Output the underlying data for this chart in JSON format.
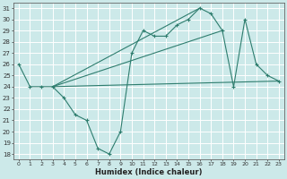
{
  "xlabel": "Humidex (Indice chaleur)",
  "bg_color": "#cce9e9",
  "grid_color": "#ffffff",
  "line_color": "#2e7d6e",
  "xlim": [
    -0.5,
    23.5
  ],
  "ylim": [
    17.5,
    31.5
  ],
  "yticks": [
    18,
    19,
    20,
    21,
    22,
    23,
    24,
    25,
    26,
    27,
    28,
    29,
    30,
    31
  ],
  "xticks": [
    0,
    1,
    2,
    3,
    4,
    5,
    6,
    7,
    8,
    9,
    10,
    11,
    12,
    13,
    14,
    15,
    16,
    17,
    18,
    19,
    20,
    21,
    22,
    23
  ],
  "series": [
    {
      "x": [
        0,
        1,
        2,
        3,
        4,
        5,
        6,
        7,
        8,
        9,
        10,
        11,
        12,
        13,
        14,
        15,
        16,
        17,
        18,
        19,
        20,
        21,
        22,
        23
      ],
      "y": [
        26,
        24,
        24,
        24,
        23,
        21.5,
        21,
        18.5,
        18,
        20,
        27,
        29,
        28.5,
        28.5,
        29.5,
        30,
        31,
        30.5,
        29,
        24,
        30,
        26,
        25,
        24.5
      ],
      "marker": true
    },
    {
      "x": [
        3,
        23
      ],
      "y": [
        24,
        24.5
      ],
      "marker": false
    },
    {
      "x": [
        3,
        16
      ],
      "y": [
        24,
        31
      ],
      "marker": false
    },
    {
      "x": [
        3,
        18
      ],
      "y": [
        24,
        29
      ],
      "marker": false
    }
  ],
  "figsize": [
    3.2,
    2.0
  ],
  "dpi": 100
}
